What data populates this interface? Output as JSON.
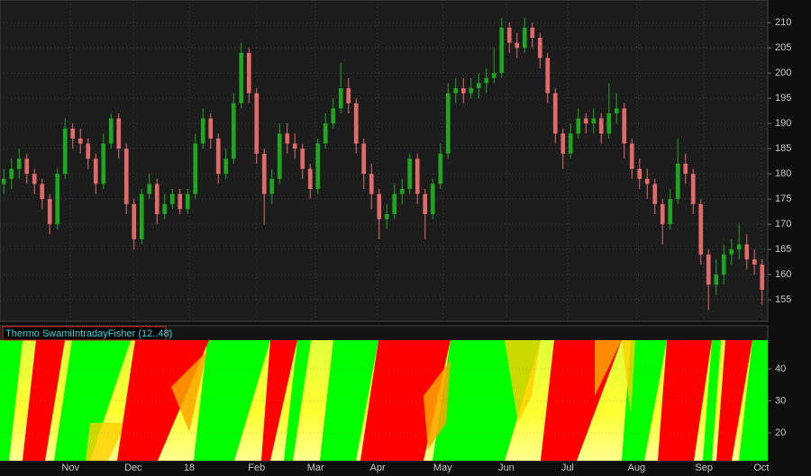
{
  "chart_data": [
    {
      "type": "candlestick",
      "colors": {
        "up": "#1fa51f",
        "down": "#e06a6a"
      },
      "grid": true,
      "xlim": [
        -0.5,
        99.5
      ],
      "xticks": [
        {
          "value": 8.7,
          "label": "Nov"
        },
        {
          "value": 16.9,
          "label": "Dec"
        },
        {
          "value": 24.2,
          "label": "18"
        },
        {
          "value": 33.0,
          "label": "Feb"
        },
        {
          "value": 40.7,
          "label": "Mar"
        },
        {
          "value": 48.8,
          "label": "Apr"
        },
        {
          "value": 57.3,
          "label": "May"
        },
        {
          "value": 65.6,
          "label": "Jun"
        },
        {
          "value": 73.6,
          "label": "Jul"
        },
        {
          "value": 82.6,
          "label": "Aug"
        },
        {
          "value": 91.4,
          "label": "Sep"
        },
        {
          "value": 98.9,
          "label": "Oct"
        }
      ],
      "ylim": [
        151.1,
        214.5
      ],
      "yticks": [
        155,
        160,
        165,
        170,
        175,
        180,
        185,
        190,
        195,
        200,
        205,
        210
      ],
      "open": [
        178,
        179,
        181,
        183,
        180,
        178,
        175,
        170,
        180,
        189,
        187,
        186,
        183,
        178,
        186,
        191,
        185,
        174,
        167,
        176,
        178,
        172,
        174,
        176,
        173,
        176,
        186,
        191,
        187,
        180,
        183,
        194,
        204,
        196,
        184,
        176,
        179,
        188,
        186,
        185,
        181,
        177,
        186,
        190,
        193,
        197,
        194,
        186,
        180,
        176,
        171,
        172,
        176,
        177,
        183,
        176,
        172,
        178,
        184,
        196,
        197,
        196,
        197,
        198,
        199,
        200,
        209,
        206,
        205,
        209,
        207,
        203,
        196,
        188,
        184,
        188,
        191,
        190,
        191,
        188,
        192,
        193,
        186,
        181,
        179,
        178,
        174,
        170,
        175,
        182,
        180,
        174,
        164,
        158,
        160,
        164,
        165,
        166,
        163,
        162
      ],
      "high": [
        181,
        183,
        185,
        184,
        181,
        179,
        176,
        181,
        191,
        190,
        189,
        187,
        184,
        188,
        192,
        192,
        186,
        175,
        177,
        180,
        179,
        176,
        177,
        177,
        177,
        188,
        193,
        192,
        188,
        185,
        196,
        206,
        205,
        197,
        185,
        181,
        190,
        190,
        188,
        186,
        182,
        187,
        192,
        195,
        202,
        199,
        195,
        187,
        182,
        177,
        174,
        178,
        179,
        184,
        184,
        177,
        179,
        186,
        198,
        199,
        199,
        199,
        200,
        201,
        205,
        211,
        210,
        208,
        211,
        210,
        208,
        204,
        197,
        189,
        190,
        193,
        192,
        193,
        192,
        198,
        196,
        194,
        187,
        183,
        181,
        179,
        175,
        177,
        187,
        184,
        181,
        175,
        165,
        163,
        166,
        167,
        170,
        168,
        165,
        163
      ],
      "low": [
        176,
        177,
        179,
        178,
        176,
        173,
        168,
        169,
        179,
        185,
        184,
        181,
        176,
        177,
        185,
        183,
        172,
        165,
        166,
        175,
        170,
        171,
        173,
        172,
        172,
        175,
        185,
        185,
        178,
        179,
        182,
        193,
        194,
        182,
        170,
        174,
        178,
        184,
        183,
        179,
        175,
        176,
        185,
        189,
        192,
        192,
        184,
        177,
        173,
        167,
        169,
        171,
        174,
        176,
        174,
        167,
        171,
        177,
        183,
        194,
        194,
        195,
        195,
        196,
        198,
        199,
        204,
        203,
        204,
        205,
        201,
        194,
        186,
        181,
        183,
        187,
        188,
        188,
        186,
        187,
        190,
        183,
        179,
        177,
        175,
        172,
        166,
        169,
        174,
        178,
        172,
        162,
        153,
        156,
        158,
        162,
        163,
        161,
        160,
        154
      ],
      "close": [
        179,
        181,
        183,
        180,
        178,
        175,
        170,
        180,
        189,
        187,
        186,
        183,
        178,
        186,
        191,
        185,
        174,
        167,
        176,
        178,
        172,
        174,
        176,
        173,
        176,
        186,
        191,
        187,
        180,
        183,
        194,
        204,
        196,
        184,
        176,
        179,
        188,
        186,
        185,
        181,
        177,
        186,
        190,
        193,
        197,
        194,
        186,
        180,
        176,
        171,
        172,
        176,
        177,
        183,
        176,
        172,
        178,
        184,
        196,
        197,
        196,
        197,
        198,
        199,
        200,
        209,
        206,
        205,
        209,
        207,
        203,
        196,
        188,
        184,
        188,
        191,
        190,
        191,
        188,
        192,
        193,
        186,
        181,
        179,
        178,
        174,
        170,
        175,
        182,
        180,
        174,
        164,
        158,
        160,
        164,
        165,
        166,
        163,
        162,
        157
      ]
    },
    {
      "type": "heatmap",
      "title": "Thermo SwamiIntradayFisher (12..48)",
      "grid": true,
      "ylim": [
        11.3,
        49
      ],
      "yticks": [
        20,
        30,
        40
      ]
    }
  ]
}
